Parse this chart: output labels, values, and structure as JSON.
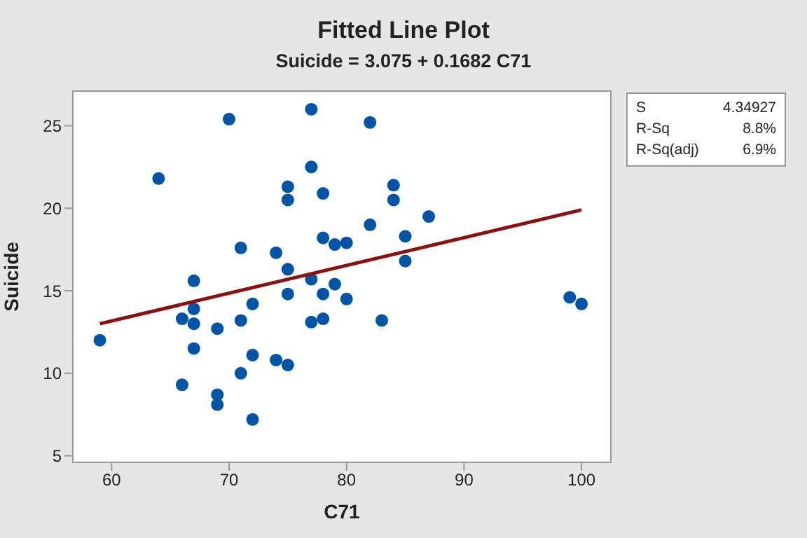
{
  "chart_data": {
    "type": "scatter",
    "title": "Fitted Line Plot",
    "subtitle": "Suicide = 3.075 + 0.1682 C71",
    "xlabel": "C71",
    "ylabel": "Suicide",
    "xlim": [
      56.7,
      102.5
    ],
    "xticks": [
      60,
      70,
      80,
      90,
      100
    ],
    "ylim": [
      4.6,
      27.1
    ],
    "yticks": [
      5,
      10,
      15,
      20,
      25
    ],
    "legend": false,
    "marker": "circle",
    "series": [
      {
        "color": "#0054a6",
        "x": [
          59,
          64,
          66,
          66,
          67,
          67,
          67,
          67,
          69,
          69,
          69,
          70,
          71,
          71,
          71,
          72,
          72,
          72,
          74,
          74,
          75,
          75,
          75,
          75,
          75,
          77,
          77,
          77,
          77,
          78,
          78,
          78,
          78,
          79,
          79,
          80,
          80,
          82,
          82,
          83,
          84,
          84,
          85,
          85,
          87,
          99,
          100
        ],
        "values": [
          12.0,
          21.8,
          13.3,
          9.3,
          15.6,
          13.9,
          13.0,
          11.5,
          12.7,
          8.7,
          8.1,
          25.4,
          17.6,
          13.2,
          10.0,
          14.2,
          11.1,
          7.2,
          17.3,
          10.8,
          21.3,
          20.5,
          16.3,
          14.8,
          10.5,
          26.0,
          22.5,
          15.7,
          13.1,
          20.9,
          18.2,
          14.8,
          13.3,
          17.8,
          15.4,
          17.9,
          14.5,
          25.2,
          19.0,
          13.2,
          21.4,
          20.5,
          18.3,
          16.8,
          19.5,
          14.6,
          14.2
        ]
      },
      {
        "type": "line",
        "marker": "none",
        "color": "#8b1010",
        "x": [
          59,
          100
        ],
        "values": [
          13.0,
          19.9
        ]
      }
    ],
    "annotations": [
      "S 4.34927",
      "R-Sq 8.8%",
      "R-Sq(adj) 6.9%"
    ]
  }
}
